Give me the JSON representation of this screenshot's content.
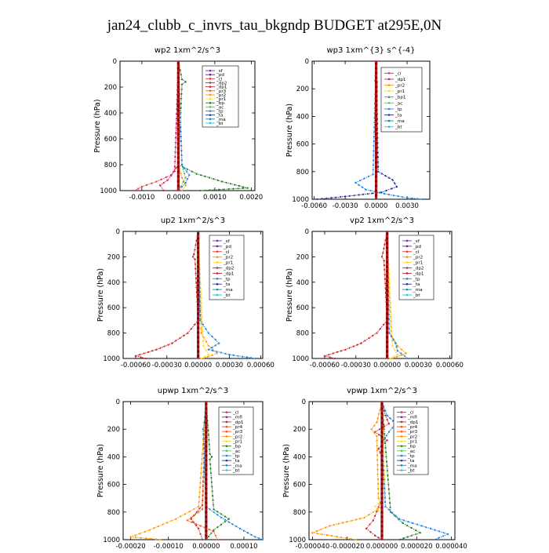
{
  "figure": {
    "title": "jan24_clubb_c_invrs_tau_bkgndp  BUDGET at295E,0N"
  },
  "colors": {
    "_sf": "#7b2cbf",
    "_pd": "#6a1b9a",
    "_cl": "#e53935",
    "_dp2": "#d81b60",
    "_dp1": "#c62828",
    "_pr3": "#ff5722",
    "_pr2": "#ff9800",
    "_pr1": "#fdd835",
    "_pr4": "#f4511e",
    "_bp": "#2e7d32",
    "_bp1": "#43a047",
    "_ac": "#66bb6a",
    "_tp": "#1e88e5",
    "_ta": "#283593",
    "_ma": "#0097a7",
    "_bt": "#26c6da",
    "_mfl": "#8e24aa",
    "main": "#b71c1c"
  },
  "chart_data": [
    {
      "type": "line",
      "title": "wp2  1xm^2/s^3",
      "ylabel": "Pressure (hPa)",
      "xlim": [
        -0.0016,
        0.0021
      ],
      "ylim": [
        1000,
        0
      ],
      "xticks": [
        -0.001,
        0.0,
        0.001,
        0.002
      ],
      "xtick_labels": [
        "-0.0010",
        "0.0000",
        "0.0010",
        "0.0020"
      ],
      "yticks": [
        0,
        200,
        400,
        600,
        800,
        1000
      ],
      "ytick_labels": [
        "0",
        "200",
        "400",
        "600",
        "800",
        "1000"
      ],
      "legend": [
        "_sf",
        "_pd",
        "_cl",
        "_dp2",
        "_dp1",
        "_pr3",
        "_pr2",
        "_pr1",
        "_bp",
        "_ac",
        "_tp",
        "_ta",
        "_ma",
        "_bt"
      ],
      "series": [
        {
          "name": "_sf",
          "p": [
            0,
            1000
          ],
          "x": [
            0,
            0
          ]
        },
        {
          "name": "_pd",
          "p": [
            0,
            1000
          ],
          "x": [
            0,
            0
          ]
        },
        {
          "name": "_cl",
          "p": [
            0,
            800,
            880,
            930,
            970,
            1000
          ],
          "x": [
            0,
            0,
            -0.0002,
            -0.0006,
            -0.001,
            -0.0012
          ]
        },
        {
          "name": "_dp2",
          "p": [
            0,
            850,
            920,
            960,
            1000
          ],
          "x": [
            0,
            -0.0001,
            -0.0003,
            -0.0005,
            -0.0004
          ]
        },
        {
          "name": "_pr3",
          "p": [
            0,
            1000
          ],
          "x": [
            0,
            0
          ]
        },
        {
          "name": "_pr2",
          "p": [
            0,
            800,
            900,
            960,
            1000
          ],
          "x": [
            0,
            0,
            0.0001,
            0.0002,
            0.0001
          ]
        },
        {
          "name": "_bp",
          "p": [
            0,
            140,
            160,
            180,
            800,
            870,
            930,
            980,
            1000
          ],
          "x": [
            0,
            0.0001,
            0.0002,
            0.0001,
            0,
            0.0005,
            0.0012,
            0.0019,
            0.0006
          ]
        },
        {
          "name": "_ac",
          "p": [
            0,
            800,
            900,
            1000
          ],
          "x": [
            0,
            0.0001,
            0.0002,
            0
          ]
        },
        {
          "name": "_tp",
          "p": [
            0,
            800,
            880,
            940,
            1000
          ],
          "x": [
            0,
            0.0001,
            0.0003,
            0.0002,
            0
          ]
        },
        {
          "name": "_bt",
          "p": [
            0,
            1000
          ],
          "x": [
            0,
            0
          ]
        }
      ]
    },
    {
      "type": "line",
      "title": "wp3  1xm^{3} s^{-4}",
      "ylabel": "Pressure (hPa)",
      "xlim": [
        -0.0062,
        0.0052
      ],
      "ylim": [
        1000,
        0
      ],
      "xticks": [
        -0.006,
        -0.003,
        0.0,
        0.003
      ],
      "xtick_labels": [
        "-0.0060",
        "-0.0030",
        "0.0000",
        "0.0030"
      ],
      "yticks": [
        0,
        200,
        400,
        600,
        800,
        1000
      ],
      "ytick_labels": [
        "0",
        "200",
        "400",
        "600",
        "800",
        "1000"
      ],
      "legend": [
        "_cl",
        "_dp1",
        "_pr2",
        "_pr1",
        "_bp1",
        "_ac",
        "_tp",
        "_ta",
        "_ma",
        "_bt"
      ],
      "series": [
        {
          "name": "_cl",
          "p": [
            0,
            1000
          ],
          "x": [
            0,
            0
          ]
        },
        {
          "name": "_bp1",
          "p": [
            0,
            1000
          ],
          "x": [
            0,
            0
          ]
        },
        {
          "name": "_tp",
          "p": [
            0,
            820,
            880,
            930,
            960,
            990,
            1000
          ],
          "x": [
            0,
            -0.0003,
            -0.002,
            -0.001,
            0.0008,
            0.003,
            0.0045
          ]
        },
        {
          "name": "_ta",
          "p": [
            0,
            800,
            860,
            910,
            950,
            980,
            1000
          ],
          "x": [
            0,
            0.0002,
            0.0016,
            0.002,
            0.0005,
            -0.003,
            -0.0057
          ]
        },
        {
          "name": "_ma",
          "p": [
            0,
            140,
            150,
            1000
          ],
          "x": [
            0,
            -0.0001,
            0.0001,
            0
          ]
        },
        {
          "name": "_pr1",
          "p": [
            0,
            1000
          ],
          "x": [
            0,
            0
          ]
        }
      ]
    },
    {
      "type": "line",
      "title": "up2  1xm^2/s^3",
      "ylabel": "Pressure (hPa)",
      "xlim": [
        -0.00072,
        0.00062
      ],
      "ylim": [
        1000,
        0
      ],
      "xticks": [
        -0.0006,
        -0.0003,
        0.0,
        0.0003,
        0.0006
      ],
      "xtick_labels": [
        "-0.00060",
        "-0.00030",
        "0.00000",
        "0.00030",
        "0.00060"
      ],
      "yticks": [
        0,
        200,
        400,
        600,
        800,
        1000
      ],
      "ytick_labels": [
        "0",
        "200",
        "400",
        "600",
        "800",
        "1000"
      ],
      "legend": [
        "_sf",
        "_pd",
        "_cl",
        "_pr2",
        "_pr1",
        "_dp2",
        "_dp1",
        "_tp",
        "_ta",
        "_ma",
        "_bt"
      ],
      "series": [
        {
          "name": "_sf",
          "p": [
            0,
            1000
          ],
          "x": [
            0,
            0
          ]
        },
        {
          "name": "_cl",
          "p": [
            0,
            1000
          ],
          "x": [
            0,
            0
          ]
        },
        {
          "name": "_pr2",
          "p": [
            0,
            800,
            900,
            960,
            1000
          ],
          "x": [
            0,
            3e-05,
            0.0001,
            0.00018,
            5e-05
          ]
        },
        {
          "name": "_pr1",
          "p": [
            0,
            900,
            970,
            1000
          ],
          "x": [
            0,
            5e-05,
            0.0001,
            3e-05
          ]
        },
        {
          "name": "_dp1",
          "p": [
            0,
            180,
            200,
            220,
            700,
            800,
            880,
            930,
            980,
            1000
          ],
          "x": [
            0,
            -4e-05,
            -5e-05,
            -3e-05,
            0,
            -0.0001,
            -0.00025,
            -0.0004,
            -0.0006,
            -0.0005
          ]
        },
        {
          "name": "_tp",
          "p": [
            0,
            700,
            800,
            880,
            930,
            970,
            1000
          ],
          "x": [
            0,
            2e-05,
            0.0001,
            0.0002,
            0.0001,
            0.0003,
            0.00055
          ]
        },
        {
          "name": "_ma",
          "p": [
            0,
            1000
          ],
          "x": [
            0,
            0
          ]
        }
      ]
    },
    {
      "type": "line",
      "title": "vp2  1xm^2/s^3",
      "ylabel": "Pressure (hPa)",
      "xlim": [
        -0.00072,
        0.00062
      ],
      "ylim": [
        1000,
        0
      ],
      "xticks": [
        -0.0006,
        -0.0003,
        0.0,
        0.0003,
        0.0006
      ],
      "xtick_labels": [
        "-0.00060",
        "-0.00030",
        "0.00000",
        "0.00030",
        "0.00060"
      ],
      "yticks": [
        0,
        200,
        400,
        600,
        800,
        1000
      ],
      "ytick_labels": [
        "0",
        "200",
        "400",
        "600",
        "800",
        "1000"
      ],
      "legend": [
        "_sf",
        "_pd",
        "_cl",
        "_pr2",
        "_pr1",
        "_dp2",
        "_dp1",
        "_tp",
        "_ta",
        "_ma",
        "_bt"
      ],
      "series": [
        {
          "name": "_sf",
          "p": [
            0,
            1000
          ],
          "x": [
            0,
            0
          ]
        },
        {
          "name": "_cl",
          "p": [
            0,
            1000
          ],
          "x": [
            0,
            0
          ]
        },
        {
          "name": "_pr2",
          "p": [
            0,
            820,
            900,
            960,
            1000
          ],
          "x": [
            0,
            4e-05,
            0.0001,
            0.00018,
            5e-05
          ]
        },
        {
          "name": "_pr1",
          "p": [
            0,
            900,
            970,
            1000
          ],
          "x": [
            0,
            5e-05,
            0.0001,
            3e-05
          ]
        },
        {
          "name": "_dp1",
          "p": [
            0,
            170,
            200,
            230,
            700,
            800,
            880,
            930,
            980,
            1000
          ],
          "x": [
            0,
            -4e-05,
            -5e-05,
            -3e-05,
            0,
            -0.0001,
            -0.00025,
            -0.0004,
            -0.0006,
            -0.0005
          ]
        },
        {
          "name": "_tp",
          "p": [
            0,
            800,
            880,
            940,
            1000
          ],
          "x": [
            0,
            2e-05,
            8e-05,
            0.0001,
            0.0002
          ]
        },
        {
          "name": "_ma",
          "p": [
            0,
            1000
          ],
          "x": [
            0,
            0
          ]
        }
      ]
    },
    {
      "type": "line",
      "title": "upwp  1xm^2/s^3",
      "ylabel": "Pressure (hPa)",
      "xlim": [
        -0.00022,
        0.00015
      ],
      "ylim": [
        1000,
        0
      ],
      "xticks": [
        -0.0002,
        -0.0001,
        0.0,
        0.0001
      ],
      "xtick_labels": [
        "-0.00020",
        "-0.00010",
        "0.00000",
        "0.00010"
      ],
      "yticks": [
        0,
        200,
        400,
        600,
        800,
        1000
      ],
      "ytick_labels": [
        "0",
        "200",
        "400",
        "600",
        "800",
        "1000"
      ],
      "legend": [
        "_cl",
        "_mfl",
        "_dp1",
        "_pr4",
        "_pr3",
        "_pr2",
        "_pr1",
        "_bp",
        "_ac",
        "_tp",
        "_ta",
        "_ma",
        "_bt"
      ],
      "series": [
        {
          "name": "_cl",
          "p": [
            0,
            1000
          ],
          "x": [
            0,
            0
          ]
        },
        {
          "name": "_mfl",
          "p": [
            0,
            1000
          ],
          "x": [
            0,
            0
          ]
        },
        {
          "name": "_dp1",
          "p": [
            0,
            750,
            850,
            920,
            1000
          ],
          "x": [
            0,
            -1e-05,
            -4e-05,
            -2e-05,
            -1e-05
          ]
        },
        {
          "name": "_pr3",
          "p": [
            0,
            780,
            860,
            940,
            1000
          ],
          "x": [
            0,
            -1e-05,
            -5e-05,
            2e-05,
            3e-05
          ]
        },
        {
          "name": "_pr2",
          "p": [
            0,
            760,
            850,
            930,
            980,
            1000
          ],
          "x": [
            0,
            -2e-05,
            -8e-05,
            -0.00015,
            -0.0002,
            -0.00012
          ]
        },
        {
          "name": "_bp",
          "p": [
            0,
            380,
            400,
            420,
            780,
            850,
            930,
            1000
          ],
          "x": [
            0,
            1e-05,
            1.5e-05,
            1e-05,
            2e-05,
            6e-05,
            2e-05,
            0
          ]
        },
        {
          "name": "_tp",
          "p": [
            0,
            150,
            200,
            760,
            840,
            920,
            980,
            1000
          ],
          "x": [
            0,
            -5e-06,
            -8e-06,
            0,
            4e-05,
            9e-05,
            0.00013,
            0.00015
          ]
        },
        {
          "name": "_ma",
          "p": [
            0,
            1000
          ],
          "x": [
            0,
            0
          ]
        }
      ]
    },
    {
      "type": "line",
      "title": "vpwp  1xm^2/s^3",
      "ylabel": "Pressure (hPa)",
      "xlim": [
        -4.2e-05,
        4.2e-05
      ],
      "ylim": [
        1000,
        0
      ],
      "xticks": [
        -4e-05,
        -2e-05,
        0.0,
        2e-05,
        4e-05
      ],
      "xtick_labels": [
        "-0.000040",
        "-0.000020",
        "0.000000",
        "0.000020",
        "0.000040"
      ],
      "yticks": [
        0,
        200,
        400,
        600,
        800,
        1000
      ],
      "ytick_labels": [
        "0",
        "200",
        "400",
        "600",
        "800",
        "1000"
      ],
      "legend": [
        "_cl",
        "_mfl",
        "_dp1",
        "_pr4",
        "_pr3",
        "_pr2",
        "_pr1",
        "_bp",
        "_ac",
        "_tp",
        "_ta",
        "_ma",
        "_bt"
      ],
      "series": [
        {
          "name": "_cl",
          "p": [
            0,
            1000
          ],
          "x": [
            0,
            0
          ]
        },
        {
          "name": "_dp1",
          "p": [
            0,
            100,
            160,
            220,
            280,
            340,
            400,
            700,
            860,
            920,
            970,
            1000
          ],
          "x": [
            0,
            2e-06,
            4e-06,
            -4e-06,
            3e-06,
            -2e-06,
            0,
            0,
            -5e-06,
            -9e-06,
            -4e-06,
            0
          ]
        },
        {
          "name": "_pr2",
          "p": [
            0,
            150,
            200,
            250,
            700,
            760,
            840,
            900,
            950,
            1000
          ],
          "x": [
            0,
            -3e-06,
            -6e-06,
            -3e-06,
            -2e-06,
            0,
            -1e-05,
            -3e-05,
            -4e-05,
            -1.5e-05
          ]
        },
        {
          "name": "_pr1",
          "p": [
            0,
            700,
            760,
            820,
            1000
          ],
          "x": [
            0,
            2e-06,
            -4e-06,
            0,
            0
          ]
        },
        {
          "name": "_bp",
          "p": [
            0,
            800,
            880,
            950,
            1000
          ],
          "x": [
            0,
            5e-06,
            1.2e-05,
            2.2e-05,
            1e-05
          ]
        },
        {
          "name": "_tp",
          "p": [
            0,
            100,
            160,
            220,
            300,
            760,
            850,
            920,
            960,
            1000
          ],
          "x": [
            0,
            3e-06,
            8e-06,
            4e-06,
            0,
            2e-06,
            1e-05,
            2.8e-05,
            3.8e-05,
            3e-05
          ]
        },
        {
          "name": "_ma",
          "p": [
            0,
            1000
          ],
          "x": [
            0,
            0
          ]
        }
      ]
    }
  ]
}
